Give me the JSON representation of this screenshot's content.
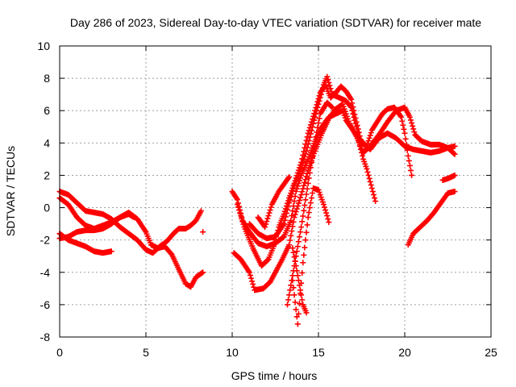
{
  "chart_data": {
    "type": "scatter",
    "title": "Day 286 of 2023, Sidereal Day-to-day VTEC variation (SDTVAR) for receiver mate",
    "xlabel": "GPS time / hours",
    "ylabel": "SDTVAR / TECUs",
    "xlim": [
      0,
      25
    ],
    "ylim": [
      -8,
      10
    ],
    "xticks": [
      0,
      5,
      10,
      15,
      20,
      25
    ],
    "yticks": [
      -8,
      -6,
      -4,
      -2,
      0,
      2,
      4,
      6,
      8,
      10
    ],
    "grid": true,
    "marker": "+",
    "color": "#ff0000",
    "series": [
      {
        "points": [
          [
            0,
            1.0
          ],
          [
            0.5,
            0.8
          ],
          [
            1,
            0.3
          ],
          [
            1.5,
            -0.2
          ],
          [
            2,
            -0.3
          ],
          [
            2.5,
            -0.4
          ],
          [
            3,
            -0.7
          ],
          [
            3.5,
            -1.2
          ],
          [
            4,
            -1.6
          ],
          [
            4.5,
            -2.0
          ],
          [
            5,
            -2.6
          ],
          [
            5.4,
            -2.8
          ],
          [
            5.8,
            -2.4
          ],
          [
            6.2,
            -2.1
          ],
          [
            6.6,
            -1.6
          ],
          [
            6.9,
            -1.3
          ],
          [
            7.3,
            -1.3
          ],
          [
            7.6,
            -1.1
          ],
          [
            7.9,
            -0.8
          ],
          [
            8.2,
            -0.2
          ]
        ]
      },
      {
        "points": [
          [
            0,
            0.6
          ],
          [
            0.5,
            0.2
          ],
          [
            1,
            -0.6
          ],
          [
            1.5,
            -1.1
          ],
          [
            2,
            -1.3
          ],
          [
            2.5,
            -1.1
          ],
          [
            3,
            -0.9
          ],
          [
            3.5,
            -0.6
          ],
          [
            4,
            -0.3
          ],
          [
            4.5,
            -0.7
          ],
          [
            5,
            -1.5
          ],
          [
            5.3,
            -2.3
          ],
          [
            5.7,
            -2.5
          ],
          [
            6.1,
            -2.4
          ],
          [
            6.5,
            -2.9
          ],
          [
            6.9,
            -3.8
          ],
          [
            7.3,
            -4.7
          ],
          [
            7.6,
            -4.9
          ],
          [
            7.9,
            -4.3
          ],
          [
            8.3,
            -4.0
          ]
        ]
      },
      {
        "points": [
          [
            0,
            -1.6
          ],
          [
            0.5,
            -2.0
          ],
          [
            1,
            -2.2
          ],
          [
            1.5,
            -2.4
          ],
          [
            2,
            -2.7
          ],
          [
            2.5,
            -2.8
          ],
          [
            3,
            -2.7
          ]
        ]
      },
      {
        "points": [
          [
            0,
            -1.9
          ],
          [
            0.5,
            -1.8
          ],
          [
            1,
            -1.5
          ],
          [
            1.5,
            -1.4
          ],
          [
            2,
            -1.4
          ],
          [
            2.5,
            -1.3
          ],
          [
            3,
            -1.0
          ],
          [
            3.5,
            -0.6
          ],
          [
            4,
            -0.4
          ],
          [
            4.3,
            -0.6
          ]
        ]
      },
      {
        "points": [
          [
            8.3,
            -1.5
          ]
        ]
      },
      {
        "points": [
          [
            10,
            1.0
          ],
          [
            10.3,
            0.5
          ],
          [
            10.6,
            -0.8
          ],
          [
            11,
            -1.5
          ],
          [
            11.5,
            -2.2
          ],
          [
            12,
            -2.4
          ],
          [
            12.5,
            -2.2
          ],
          [
            13,
            -1.8
          ],
          [
            13.4,
            -0.8
          ],
          [
            13.7,
            1.0
          ],
          [
            14,
            2.0
          ],
          [
            14.4,
            3.0
          ],
          [
            14.8,
            4.1
          ],
          [
            15.2,
            5.0
          ],
          [
            15.6,
            5.6
          ],
          [
            16,
            5.8
          ],
          [
            16.4,
            6.0
          ],
          [
            16.6,
            5.4
          ],
          [
            17,
            4.8
          ],
          [
            17.5,
            4.1
          ],
          [
            18,
            3.6
          ],
          [
            18.5,
            4.3
          ],
          [
            19,
            4.6
          ],
          [
            19.5,
            4.3
          ],
          [
            20,
            3.8
          ],
          [
            20.5,
            3.6
          ],
          [
            21,
            3.5
          ],
          [
            21.5,
            3.4
          ],
          [
            22,
            3.5
          ],
          [
            22.5,
            3.7
          ],
          [
            22.9,
            3.8
          ]
        ]
      },
      {
        "points": [
          [
            10.1,
            -2.8
          ],
          [
            10.5,
            -3.2
          ],
          [
            11,
            -4.0
          ],
          [
            11.3,
            -5.1
          ],
          [
            11.8,
            -5.0
          ],
          [
            12.2,
            -4.6
          ],
          [
            12.6,
            -3.8
          ],
          [
            12.9,
            -3.2
          ],
          [
            13.3,
            -2.3
          ],
          [
            13.6,
            -0.6
          ],
          [
            14,
            0.8
          ],
          [
            14.4,
            2.3
          ],
          [
            14.8,
            3.5
          ],
          [
            15.2,
            4.6
          ],
          [
            15.6,
            5.5
          ],
          [
            16,
            6.1
          ],
          [
            16.4,
            6.4
          ],
          [
            16.8,
            5.2
          ],
          [
            17.2,
            4.4
          ],
          [
            17.6,
            3.4
          ],
          [
            18,
            3.8
          ],
          [
            18.5,
            4.5
          ],
          [
            19,
            5.3
          ],
          [
            19.5,
            6.0
          ],
          [
            20,
            6.2
          ],
          [
            20.3,
            5.6
          ],
          [
            20.6,
            4.5
          ],
          [
            21,
            4.1
          ],
          [
            21.5,
            3.9
          ],
          [
            22,
            3.9
          ],
          [
            22.5,
            3.7
          ],
          [
            22.9,
            3.3
          ]
        ]
      },
      {
        "points": [
          [
            10.3,
            0.2
          ],
          [
            10.7,
            -1.2
          ],
          [
            11.2,
            -2.5
          ],
          [
            11.7,
            -3.6
          ],
          [
            12.1,
            -3.2
          ],
          [
            12.4,
            -2.4
          ],
          [
            12.7,
            -1.2
          ],
          [
            13,
            -0.4
          ],
          [
            13.3,
            0.6
          ],
          [
            13.6,
            1.5
          ],
          [
            14,
            2.8
          ],
          [
            14.4,
            4.6
          ],
          [
            14.8,
            6.0
          ],
          [
            15.1,
            7.1
          ],
          [
            15.4,
            7.6
          ],
          [
            15.7,
            6.8
          ],
          [
            16,
            7.1
          ],
          [
            16.3,
            7.5
          ],
          [
            16.6,
            7.2
          ],
          [
            16.9,
            6.7
          ],
          [
            17.2,
            5.3
          ],
          [
            17.5,
            4.0
          ],
          [
            17.8,
            3.8
          ],
          [
            18.1,
            4.8
          ],
          [
            18.4,
            5.3
          ],
          [
            18.7,
            5.8
          ],
          [
            19,
            6.1
          ],
          [
            19.4,
            6.2
          ],
          [
            19.8,
            5.6
          ],
          [
            20,
            4.6
          ],
          [
            20.2,
            3.2
          ],
          [
            20.4,
            2.0
          ]
        ]
      },
      {
        "points": [
          [
            11,
            -1.0
          ],
          [
            11.5,
            -1.6
          ],
          [
            12,
            -1.9
          ],
          [
            12.5,
            -1.8
          ],
          [
            13,
            -1.0
          ],
          [
            13.3,
            0.3
          ],
          [
            13.6,
            1.4
          ],
          [
            13.9,
            2.1
          ],
          [
            14.3,
            3.5
          ],
          [
            14.7,
            5.2
          ],
          [
            15,
            6.4
          ],
          [
            15.3,
            7.6
          ],
          [
            15.5,
            8.1
          ],
          [
            15.8,
            7.0
          ],
          [
            16.2,
            6.8
          ],
          [
            16.6,
            6.6
          ],
          [
            16.9,
            6.2
          ],
          [
            17.2,
            5.0
          ],
          [
            17.4,
            3.8
          ],
          [
            17.6,
            3.0
          ],
          [
            17.8,
            2.4
          ],
          [
            18,
            1.6
          ],
          [
            18.3,
            0.4
          ]
        ]
      },
      {
        "points": [
          [
            11.5,
            -0.6
          ],
          [
            11.9,
            -1.2
          ],
          [
            12.3,
            0.2
          ],
          [
            12.7,
            1.0
          ],
          [
            13.1,
            1.6
          ],
          [
            13.3,
            1.9
          ]
        ]
      },
      {
        "points": [
          [
            13.5,
            -2.5
          ],
          [
            13.7,
            -3.6
          ],
          [
            13.9,
            -4.8
          ],
          [
            14.1,
            -6.0
          ],
          [
            14.3,
            -6.5
          ]
        ]
      },
      {
        "points": [
          [
            13.5,
            -4.5
          ],
          [
            13.8,
            -7.2
          ],
          [
            14.1,
            -3.4
          ],
          [
            14.4,
            -0.6
          ],
          [
            14.7,
            1.2
          ],
          [
            15.0,
            1.1
          ],
          [
            15.3,
            0.2
          ],
          [
            15.5,
            -0.5
          ],
          [
            15.6,
            -0.9
          ]
        ]
      },
      {
        "points": [
          [
            13.2,
            -6.0
          ],
          [
            13.6,
            -3.6
          ],
          [
            14,
            -1.2
          ],
          [
            14.4,
            1.5
          ],
          [
            14.8,
            4.1
          ],
          [
            15.1,
            5.8
          ],
          [
            15.5,
            6.5
          ],
          [
            15.8,
            6.2
          ]
        ]
      },
      {
        "points": [
          [
            20.2,
            -2.3
          ],
          [
            20.5,
            -1.6
          ],
          [
            20.9,
            -1.2
          ],
          [
            21.3,
            -0.8
          ],
          [
            21.7,
            -0.3
          ],
          [
            22.1,
            0.3
          ],
          [
            22.5,
            0.9
          ],
          [
            22.9,
            1.0
          ]
        ]
      },
      {
        "points": [
          [
            22.2,
            1.7
          ],
          [
            22.5,
            1.8
          ],
          [
            22.9,
            2.0
          ]
        ]
      }
    ]
  }
}
